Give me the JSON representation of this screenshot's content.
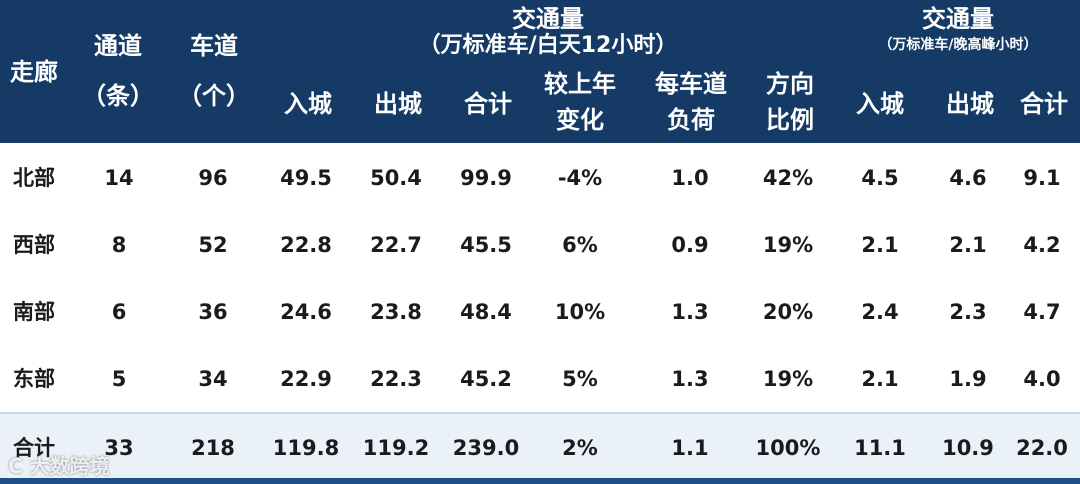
{
  "header": {
    "corridor": "走廊",
    "channels_line1": "通道",
    "channels_line2": "（条）",
    "lanes_line1": "车道",
    "lanes_line2": "（个）",
    "daily_title": "交通量",
    "daily_unit": "（万标准车/白天12小时）",
    "peak_title": "交通量",
    "peak_unit": "（万标准车/晚高峰小时）",
    "in_city": "入城",
    "out_city": "出城",
    "total": "合计",
    "yoy_line1": "较上年",
    "yoy_line2": "变化",
    "perlane_line1": "每车道",
    "perlane_line2": "负荷",
    "dir_line1": "方向",
    "dir_line2": "比例",
    "peak_in": "入城",
    "peak_out": "出城",
    "peak_total": "合计"
  },
  "rows": [
    [
      "北部",
      "14",
      "96",
      "49.5",
      "50.4",
      "99.9",
      "-4%",
      "1.0",
      "42%",
      "4.5",
      "4.6",
      "9.1"
    ],
    [
      "西部",
      "8",
      "52",
      "22.8",
      "22.7",
      "45.5",
      "6%",
      "0.9",
      "19%",
      "2.1",
      "2.1",
      "4.2"
    ],
    [
      "南部",
      "6",
      "36",
      "24.6",
      "23.8",
      "48.4",
      "10%",
      "1.3",
      "20%",
      "2.4",
      "2.3",
      "4.7"
    ],
    [
      "东部",
      "5",
      "34",
      "22.9",
      "22.3",
      "45.2",
      "5%",
      "1.3",
      "19%",
      "2.1",
      "1.9",
      "4.0"
    ]
  ],
  "total_row": [
    "合计",
    "33",
    "218",
    "119.8",
    "119.2",
    "239.0",
    "2%",
    "1.1",
    "100%",
    "11.1",
    "10.9",
    "22.0"
  ],
  "watermark": "C 大数跨境",
  "colors": {
    "header_bg": "#153a66",
    "total_bg": "#eaf1f8",
    "text": "#1b1b1b"
  }
}
